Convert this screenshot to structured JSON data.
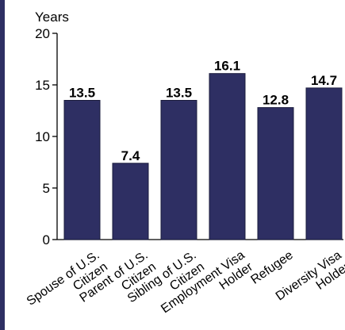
{
  "chart_data": {
    "type": "bar",
    "ylabel": "Years",
    "ylim": [
      0,
      20
    ],
    "yticks": [
      0,
      5,
      10,
      15,
      20
    ],
    "categories": [
      [
        "Spouse of U.S.",
        "Citizen"
      ],
      [
        "Parent of U.S.",
        "Citizen"
      ],
      [
        "Sibling of U.S.",
        "Citizen"
      ],
      [
        "Employment Visa",
        "Holder"
      ],
      [
        "Refugee"
      ],
      [
        "Diversity Visa",
        "Holder"
      ]
    ],
    "values": [
      13.5,
      7.4,
      13.5,
      16.1,
      12.8,
      14.7
    ],
    "data_labels": [
      "13.5",
      "7.4",
      "13.5",
      "16.1",
      "12.8",
      "14.7"
    ],
    "colors": {
      "bar": "#2e2f63",
      "border": "#2e2f63",
      "text": "#000000",
      "axis": "#000000"
    }
  }
}
